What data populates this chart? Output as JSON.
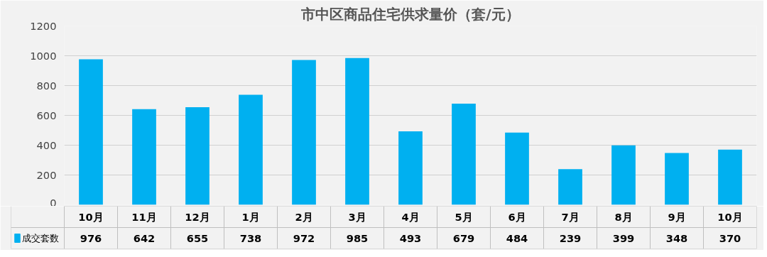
{
  "chart_data": {
    "type": "bar",
    "title": "市中区商品住宅供求量价（套/元）",
    "categories": [
      "10月",
      "11月",
      "12月",
      "1月",
      "2月",
      "3月",
      "4月",
      "5月",
      "6月",
      "7月",
      "8月",
      "9月",
      "10月"
    ],
    "series": [
      {
        "name": "成交套数",
        "color": "#00b0f0",
        "values": [
          976,
          642,
          655,
          738,
          972,
          985,
          493,
          679,
          484,
          239,
          399,
          348,
          370
        ]
      }
    ],
    "ylim": [
      0,
      1200
    ],
    "yticks": [
      0,
      200,
      400,
      600,
      800,
      1000,
      1200
    ],
    "grid": "y",
    "legend": "bottom",
    "data_labels": true
  }
}
